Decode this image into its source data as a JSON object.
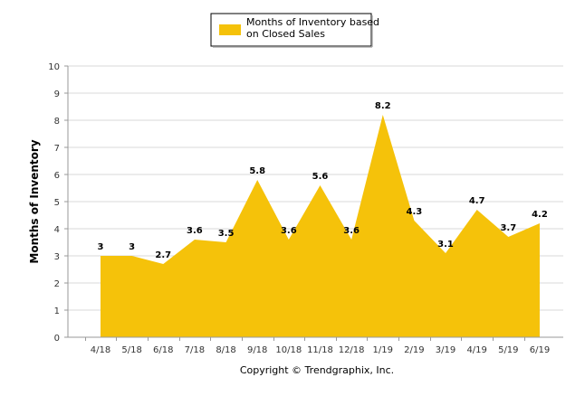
{
  "chart_data": {
    "type": "area",
    "categories": [
      "4/18",
      "5/18",
      "6/18",
      "7/18",
      "8/18",
      "9/18",
      "10/18",
      "11/18",
      "12/18",
      "1/19",
      "2/19",
      "3/19",
      "4/19",
      "5/19",
      "6/19"
    ],
    "series": [
      {
        "name": "Months of Inventory based on Closed Sales",
        "values": [
          3,
          3,
          2.7,
          3.6,
          3.5,
          5.8,
          3.6,
          5.6,
          3.6,
          8.2,
          4.3,
          3.1,
          4.7,
          3.7,
          4.2
        ],
        "color": "#F5C20A"
      }
    ],
    "ylabel": "Months of Inventory",
    "xlabel": "",
    "ylim": [
      0,
      10
    ],
    "yticks": [
      0,
      1,
      2,
      3,
      4,
      5,
      6,
      7,
      8,
      9,
      10
    ],
    "grid": true,
    "legend_position": "top-center",
    "legend_lines": [
      "Months of Inventory based",
      "on Closed Sales"
    ],
    "footer": "Copyright © Trendgraphix, Inc."
  }
}
